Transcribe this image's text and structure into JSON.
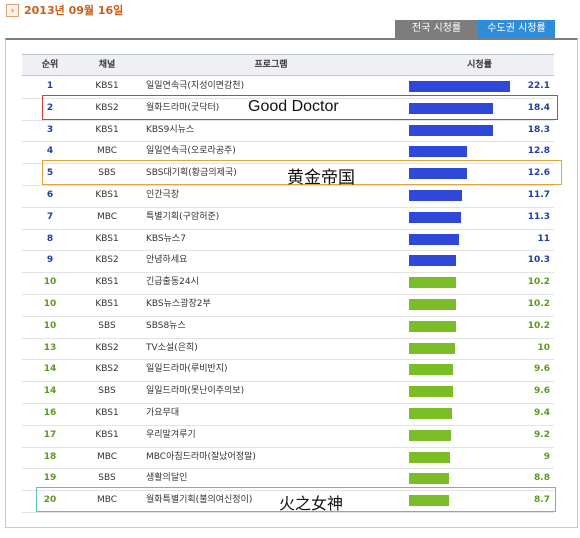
{
  "date": "2013년 09월 16일",
  "date_icon": "arrow-right-icon",
  "tabs": {
    "national": "전국 시청률",
    "metro": "수도권 시청률",
    "active": "metro"
  },
  "columns": {
    "rank": "순위",
    "channel": "채널",
    "program": "프로그램",
    "rating": "시청률"
  },
  "colors": {
    "blue_bar": "#2f48d9",
    "green_bar": "#7bbd27",
    "red_box": "#d93a3a",
    "orange_box": "#e3a43b",
    "cyan_box": "#5bbcc4"
  },
  "rows": [
    {
      "rank": "1",
      "channel": "KBS1",
      "program": "일일연속극(지성이면감천)",
      "rating": "22.1",
      "value": 22.1,
      "color": "blue"
    },
    {
      "rank": "2",
      "channel": "KBS2",
      "program": "월화드라마(굿닥터)",
      "rating": "18.4",
      "value": 18.4,
      "color": "blue"
    },
    {
      "rank": "3",
      "channel": "KBS1",
      "program": "KBS9시뉴스",
      "rating": "18.3",
      "value": 18.3,
      "color": "blue"
    },
    {
      "rank": "4",
      "channel": "MBC",
      "program": "일일연속극(오로라공주)",
      "rating": "12.8",
      "value": 12.8,
      "color": "blue"
    },
    {
      "rank": "5",
      "channel": "SBS",
      "program": "SBS대기획(황금의제국)",
      "rating": "12.6",
      "value": 12.6,
      "color": "blue"
    },
    {
      "rank": "6",
      "channel": "KBS1",
      "program": "인간극장",
      "rating": "11.7",
      "value": 11.7,
      "color": "blue"
    },
    {
      "rank": "7",
      "channel": "MBC",
      "program": "특별기획(구암허준)",
      "rating": "11.3",
      "value": 11.3,
      "color": "blue"
    },
    {
      "rank": "8",
      "channel": "KBS1",
      "program": "KBS뉴스7",
      "rating": "11",
      "value": 11.0,
      "color": "blue"
    },
    {
      "rank": "9",
      "channel": "KBS2",
      "program": "안녕하세요",
      "rating": "10.3",
      "value": 10.3,
      "color": "blue"
    },
    {
      "rank": "10",
      "channel": "KBS1",
      "program": "긴급출동24시",
      "rating": "10.2",
      "value": 10.2,
      "color": "green"
    },
    {
      "rank": "10",
      "channel": "KBS1",
      "program": "KBS뉴스광장2부",
      "rating": "10.2",
      "value": 10.2,
      "color": "green"
    },
    {
      "rank": "10",
      "channel": "SBS",
      "program": "SBS8뉴스",
      "rating": "10.2",
      "value": 10.2,
      "color": "green"
    },
    {
      "rank": "13",
      "channel": "KBS2",
      "program": "TV소설(은희)",
      "rating": "10",
      "value": 10.0,
      "color": "green"
    },
    {
      "rank": "14",
      "channel": "KBS2",
      "program": "일일드라마(루비반지)",
      "rating": "9.6",
      "value": 9.6,
      "color": "green"
    },
    {
      "rank": "14",
      "channel": "SBS",
      "program": "일일드라마(못난이주의보)",
      "rating": "9.6",
      "value": 9.6,
      "color": "green"
    },
    {
      "rank": "16",
      "channel": "KBS1",
      "program": "가요무대",
      "rating": "9.4",
      "value": 9.4,
      "color": "green"
    },
    {
      "rank": "17",
      "channel": "KBS1",
      "program": "우리말겨루기",
      "rating": "9.2",
      "value": 9.2,
      "color": "green"
    },
    {
      "rank": "18",
      "channel": "MBC",
      "program": "MBC아침드라마(잘났어정말)",
      "rating": "9",
      "value": 9.0,
      "color": "green"
    },
    {
      "rank": "19",
      "channel": "SBS",
      "program": "생활의달인",
      "rating": "8.8",
      "value": 8.8,
      "color": "green"
    },
    {
      "rank": "20",
      "channel": "MBC",
      "program": "월화특별기획(불의여신정이)",
      "rating": "8.7",
      "value": 8.7,
      "color": "green"
    }
  ],
  "annotations": [
    {
      "row": 2,
      "label": "Good Doctor",
      "color": "red"
    },
    {
      "row": 5,
      "label": "黄金帝国",
      "color": "orange"
    },
    {
      "row": 20,
      "label": "火之女神",
      "color": "cyan"
    }
  ]
}
